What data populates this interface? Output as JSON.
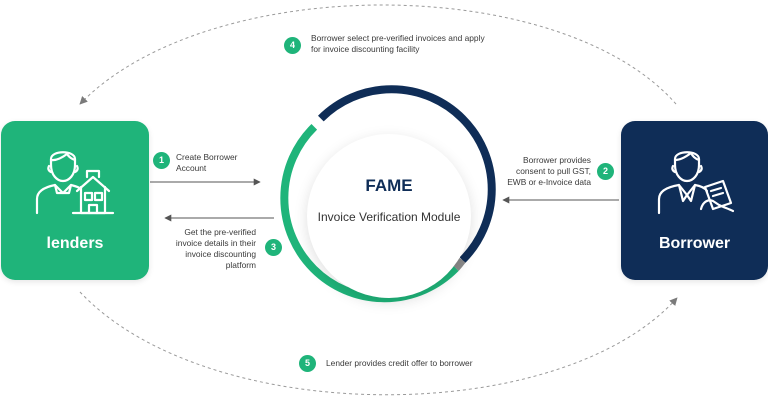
{
  "colors": {
    "green": "#1fb47a",
    "navy": "#0f2d57",
    "arrow": "#555555",
    "dashed": "#9a9a9a"
  },
  "center": {
    "title": "FAME",
    "subtitle": "Invoice Verification Module"
  },
  "lenders": {
    "label": "lenders",
    "icon": "lender-with-house-icon"
  },
  "borrower": {
    "label": "Borrower",
    "icon": "borrower-with-document-icon"
  },
  "steps": [
    {
      "number": "1",
      "lines": [
        "Create Borrower",
        "Account"
      ]
    },
    {
      "number": "2",
      "lines": [
        "Borrower provides",
        "consent to pull GST,",
        "EWB or e-Invoice data"
      ]
    },
    {
      "number": "3",
      "lines": [
        "Get the pre-verified",
        "invoice details in their",
        "invoice discounting",
        "platform"
      ]
    },
    {
      "number": "4",
      "lines": [
        "Borrower select pre-verified invoices and apply",
        "for invoice discounting facility"
      ]
    },
    {
      "number": "5",
      "lines": [
        "Lender provides credit offer to borrower"
      ]
    }
  ]
}
